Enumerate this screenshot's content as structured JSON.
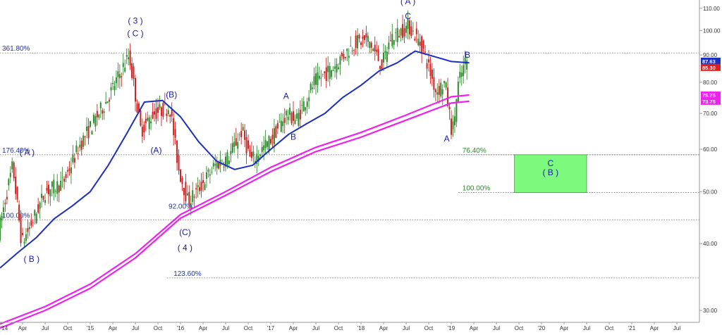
{
  "colors": {
    "background": "#ffffff",
    "up_candle": "#2e8b2e",
    "down_candle": "#cc2222",
    "ma_blue": "#1a2fbf",
    "ma_magenta": "#ee22ee",
    "fib_line": "#555555",
    "fib_text_blue": "#2233aa",
    "fib_text_green": "#2a8a2a",
    "target_box_fill": "#7dfa7d",
    "target_box_text": "#1a1aa8",
    "wave_label": "#1a1aa8",
    "price_box_blue": "#1a2fbf",
    "price_box_red": "#e02020",
    "price_box_magenta": "#ee22ee"
  },
  "chart_data": {
    "type": "line",
    "y_axis": {
      "scale": "log",
      "ylim": [
        28.5,
        114
      ],
      "ticks": [
        30,
        40,
        50,
        60,
        70,
        80,
        90,
        100,
        110
      ],
      "tick_labels": [
        "30.00",
        "40.00",
        "50.00",
        "60.00",
        "70.00",
        "80.00",
        "90.00",
        "100.00",
        "110.00"
      ],
      "position": "right"
    },
    "x_axis": {
      "xlim": [
        2014.0,
        2021.75
      ],
      "ticks": [
        2014.0,
        2014.25,
        2014.5,
        2014.75,
        2015.0,
        2015.25,
        2015.5,
        2015.75,
        2016.0,
        2016.25,
        2016.5,
        2016.75,
        2017.0,
        2017.25,
        2017.5,
        2017.75,
        2018.0,
        2018.25,
        2018.5,
        2018.75,
        2019.0,
        2019.25,
        2019.5,
        2019.75,
        2020.0,
        2020.25,
        2020.5,
        2020.75,
        2021.0,
        2021.25,
        2021.5
      ],
      "tick_labels": [
        "'14",
        "Apr",
        "Jul",
        "Oct",
        "'15",
        "Apr",
        "Jul",
        "Oct",
        "'16",
        "Apr",
        "Jul",
        "Oct",
        "'17",
        "Apr",
        "Jul",
        "Oct",
        "'18",
        "Apr",
        "Jul",
        "Oct",
        "'19",
        "Apr",
        "Jul",
        "Oct",
        "'20",
        "Apr",
        "Jul",
        "Oct",
        "'21",
        "Apr",
        "Jul"
      ]
    },
    "price_path": {
      "name": "",
      "x": [
        2014.0,
        2014.16,
        2014.26,
        2014.38,
        2014.52,
        2014.72,
        2014.9,
        2015.2,
        2015.45,
        2015.58,
        2015.72,
        2015.9,
        2016.0,
        2016.1,
        2016.2,
        2016.4,
        2016.55,
        2016.7,
        2016.8,
        2017.0,
        2017.2,
        2017.3,
        2017.5,
        2017.7,
        2017.95,
        2018.1,
        2018.25,
        2018.35,
        2018.55,
        2018.7,
        2018.85,
        2018.95,
        2019.03,
        2019.1,
        2019.18
      ],
      "values": [
        42,
        56,
        40,
        44,
        50,
        52,
        61,
        74,
        90,
        65,
        70,
        72,
        55,
        48,
        50,
        56,
        58,
        65,
        57,
        62,
        70,
        68,
        80,
        85,
        95,
        96,
        86,
        97,
        102,
        93,
        77,
        80,
        64,
        80,
        87.63
      ]
    },
    "series": [
      {
        "name": "",
        "color": "#1a2fbf",
        "x": [
          2014.0,
          2014.2,
          2014.4,
          2014.6,
          2014.8,
          2015.0,
          2015.2,
          2015.4,
          2015.6,
          2015.8,
          2016.0,
          2016.2,
          2016.4,
          2016.6,
          2016.8,
          2017.0,
          2017.2,
          2017.4,
          2017.6,
          2017.8,
          2018.0,
          2018.2,
          2018.4,
          2018.6,
          2018.8,
          2019.0,
          2019.2
        ],
        "values": [
          36,
          38.5,
          41,
          44.5,
          47,
          50,
          56,
          64,
          73.5,
          74,
          69,
          62,
          57,
          55,
          56,
          60,
          64,
          67,
          70,
          75,
          79,
          84,
          87,
          91.5,
          89.5,
          87.5,
          87
        ]
      },
      {
        "name": "",
        "color": "#ee22ee",
        "x": [
          2014.0,
          2014.5,
          2015.0,
          2015.5,
          2016.0,
          2016.5,
          2017.0,
          2017.5,
          2018.0,
          2018.5,
          2019.0,
          2019.2
        ],
        "values": [
          28.3,
          30.5,
          33.6,
          38.3,
          45.3,
          50,
          55.5,
          60.5,
          64.5,
          69.5,
          75.2,
          75.75
        ]
      },
      {
        "name": "",
        "color": "#ee22ee",
        "x": [
          2014.0,
          2014.5,
          2015.0,
          2015.5,
          2016.0,
          2016.5,
          2017.0,
          2017.5,
          2018.0,
          2018.5,
          2019.0,
          2019.2
        ],
        "values": [
          27.8,
          30,
          33,
          37.6,
          44.6,
          49.2,
          54.5,
          59.4,
          63.2,
          68,
          73.2,
          73.75
        ]
      }
    ],
    "fib_levels": [
      {
        "label": "361.80%",
        "value": 90.8,
        "x_start": 2014.0,
        "label_x": 2014.0,
        "style": "blue"
      },
      {
        "label": "176.40%",
        "value": 58.6,
        "x_start": 2014.0,
        "label_x": 2014.0,
        "style": "blue"
      },
      {
        "label": "100.00%",
        "value": 44.3,
        "x_start": 2014.0,
        "label_x": 2014.0,
        "style": "blue"
      },
      {
        "label": "123.60%",
        "value": 34.5,
        "x_start": 2015.85,
        "label_x": 2015.9,
        "style": "blue"
      },
      {
        "label": "76.40%",
        "value": 58.6,
        "x_start": 2019.08,
        "label_x": 2019.1,
        "style": "green"
      },
      {
        "label": "100.00%",
        "value": 49.8,
        "x_start": 2019.08,
        "label_x": 2019.1,
        "style": "green"
      }
    ],
    "annotations": [
      {
        "text": "92.00%",
        "x": 2016.0,
        "y": 46.5,
        "kind": "fib-text"
      },
      {
        "text": "( 3 )",
        "x": 2015.5,
        "y": 103,
        "kind": "wave"
      },
      {
        "text": "( C )",
        "x": 2015.5,
        "y": 97.5,
        "kind": "wave"
      },
      {
        "text": "(B)",
        "x": 2015.9,
        "y": 75,
        "kind": "wave"
      },
      {
        "text": "(A)",
        "x": 2015.73,
        "y": 59,
        "kind": "wave"
      },
      {
        "text": "( A )",
        "x": 2014.3,
        "y": 58.5,
        "kind": "wave"
      },
      {
        "text": "( B )",
        "x": 2014.35,
        "y": 37,
        "kind": "wave"
      },
      {
        "text": "(C)",
        "x": 2016.05,
        "y": 41.5,
        "kind": "wave"
      },
      {
        "text": "( 4 )",
        "x": 2016.05,
        "y": 38.8,
        "kind": "wave"
      },
      {
        "text": "A",
        "x": 2017.17,
        "y": 74.5,
        "kind": "wave"
      },
      {
        "text": "B",
        "x": 2017.25,
        "y": 62.5,
        "kind": "wave"
      },
      {
        "text": "( A )",
        "x": 2018.52,
        "y": 112,
        "kind": "wave"
      },
      {
        "text": "C",
        "x": 2018.52,
        "y": 105,
        "kind": "wave"
      },
      {
        "text": "A",
        "x": 2018.95,
        "y": 62,
        "kind": "wave"
      },
      {
        "text": "B",
        "x": 2019.18,
        "y": 89,
        "kind": "wave"
      }
    ],
    "target_box": {
      "x_start": 2019.7,
      "x_end": 2020.5,
      "y_top": 58.6,
      "y_bottom": 49.8,
      "lines": [
        "C",
        "( B )"
      ]
    },
    "price_boxes": [
      {
        "label": "87.63",
        "value": 87.63,
        "color": "#1a2fbf"
      },
      {
        "label": "85.30",
        "value": 85.3,
        "color": "#e02020"
      },
      {
        "label": "75.75",
        "value": 75.75,
        "color": "#ee22ee"
      },
      {
        "label": "73.75",
        "value": 73.75,
        "color": "#ee22ee"
      }
    ],
    "title": "",
    "xlabel": "",
    "ylabel": "",
    "legend": "none",
    "grid": false
  }
}
